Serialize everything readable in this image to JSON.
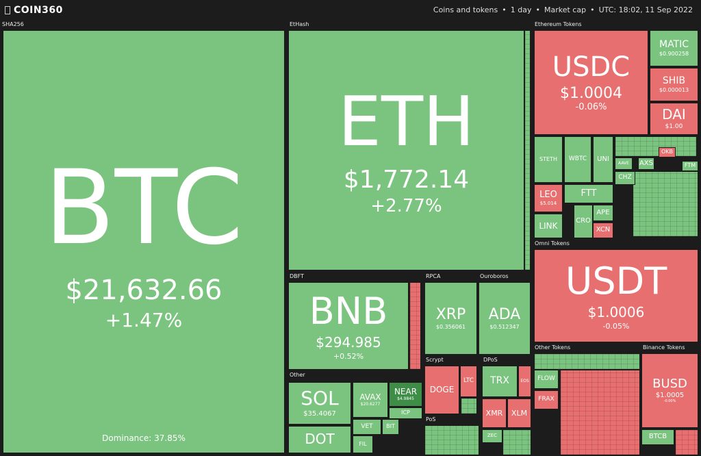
{
  "header": {
    "logo": "COIN360",
    "filters": [
      "Coins and tokens",
      "1 day",
      "Market cap",
      "UTC: 18:02, 11 Sep 2022"
    ]
  },
  "groups": [
    {
      "label": "SHA256",
      "tiles": [
        {
          "symbol": "BTC",
          "price": "$21,632.66",
          "change": "+1.47%",
          "note": "Dominance: 37.85%"
        }
      ]
    },
    {
      "label": "EtHash",
      "tiles": [
        {
          "symbol": "ETH",
          "price": "$1,772.14",
          "change": "+2.77%"
        }
      ]
    },
    {
      "label": "Ethereum Tokens",
      "tiles": [
        {
          "symbol": "USDC",
          "price": "$1.0004",
          "change": "-0.06%"
        },
        {
          "symbol": "MATIC",
          "price": "$0.900258"
        },
        {
          "symbol": "SHIB",
          "price": "$0.000013"
        },
        {
          "symbol": "DAI",
          "price": "$1.00"
        },
        {
          "symbol": "STETH"
        },
        {
          "symbol": "WBTC"
        },
        {
          "symbol": "UNI"
        },
        {
          "symbol": "AAVE"
        },
        {
          "symbol": "AXS"
        },
        {
          "symbol": "CHZ"
        },
        {
          "symbol": "LEO",
          "price": "$5.014"
        },
        {
          "symbol": "LINK"
        },
        {
          "symbol": "FTT"
        },
        {
          "symbol": "CRO"
        },
        {
          "symbol": "APE"
        },
        {
          "symbol": "XCN"
        },
        {
          "symbol": "OKB"
        },
        {
          "symbol": "FTM"
        }
      ]
    },
    {
      "label": "Omni Tokens",
      "tiles": [
        {
          "symbol": "USDT",
          "price": "$1.0006",
          "change": "-0.05%"
        }
      ]
    },
    {
      "label": "DBFT",
      "tiles": [
        {
          "symbol": "BNB",
          "price": "$294.985",
          "change": "+0.52%"
        }
      ]
    },
    {
      "label": "RPCA",
      "tiles": [
        {
          "symbol": "XRP",
          "price": "$0.356061"
        }
      ]
    },
    {
      "label": "Ouroboros",
      "tiles": [
        {
          "symbol": "ADA",
          "price": "$0.512347"
        }
      ]
    },
    {
      "label": "Other",
      "tiles": [
        {
          "symbol": "SOL",
          "price": "$35.4067"
        },
        {
          "symbol": "DOT"
        },
        {
          "symbol": "AVAX",
          "price": "$20.6277"
        },
        {
          "symbol": "NEAR",
          "price": "$4.9845"
        },
        {
          "symbol": "ICP"
        },
        {
          "symbol": "VET"
        },
        {
          "symbol": "BIT"
        },
        {
          "symbol": "FIL"
        }
      ]
    },
    {
      "label": "Scrypt",
      "tiles": [
        {
          "symbol": "DOGE"
        },
        {
          "symbol": "LTC"
        }
      ]
    },
    {
      "label": "DPoS",
      "tiles": [
        {
          "symbol": "TRX"
        },
        {
          "symbol": "EOS"
        },
        {
          "symbol": "XMR"
        },
        {
          "symbol": "XLM"
        },
        {
          "symbol": "ZEC"
        }
      ]
    },
    {
      "label": "PoS",
      "tiles": []
    },
    {
      "label": "Other Tokens",
      "tiles": [
        {
          "symbol": "FLOW"
        },
        {
          "symbol": "FRAX"
        }
      ]
    },
    {
      "label": "Binance Tokens",
      "tiles": [
        {
          "symbol": "BUSD",
          "price": "$1.0005",
          "change": "-0.00%"
        },
        {
          "symbol": "BTCB"
        }
      ]
    }
  ]
}
